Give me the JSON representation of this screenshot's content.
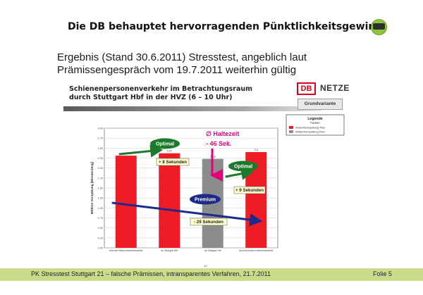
{
  "slide": {
    "title": "Die DB behauptet hervorragenden Pünktlichkeitsgewinn",
    "subtitle_line1": "Ergebnis (Stand 30.6.2011) Stresstest, angeblich laut",
    "subtitle_line2": "Prämissengespräch vom 19.7.2011 weiterhin gültig",
    "footer_text": "PK Stresstest Stuttgart 21 – falsche Prämissen, intransparentes Verfahren, 21.7.2011",
    "footer_page": "Folie 5",
    "footer_color": "#c9dc8c"
  },
  "figure": {
    "heading_line1": "Schienenpersonenverkehr im Betrachtungsraum",
    "heading_line2": "durch Stuttgart Hbf in der HVZ (6 – 10 Uhr)",
    "brand_db": "DB",
    "brand_netze": "NETZE",
    "variant_label": "Grundvariante",
    "page_number": "67"
  },
  "chart_data": {
    "type": "bar",
    "ylabel": "Mittlere Verspätung [Minuten/Zug]",
    "ylim": [
      0,
      3.0
    ],
    "yticks": [
      0,
      0.25,
      0.5,
      0.75,
      1.0,
      1.25,
      1.5,
      1.75,
      2.0,
      2.25,
      2.5,
      2.75,
      3.0
    ],
    "categories": [
      "Ankunft Einbruchsbetriebsstelle",
      "an Stuttgart Hbf",
      "ab Stuttgart Hbf",
      "Ankunft Ausbruchsbetriebsstelle"
    ],
    "series": [
      {
        "name": "Ankunftverspätung Plan",
        "color": "#ee1c25",
        "values": [
          2.31,
          2.37,
          null,
          2.4
        ]
      },
      {
        "name": "Abfahrtverspätung Plan",
        "color": "#8c8c8c",
        "values": [
          null,
          null,
          2.23,
          null
        ]
      }
    ],
    "value_labels": [
      "2,31",
      "2,37",
      "2,23",
      "2,4"
    ],
    "grid": true,
    "legend": {
      "title": "Legende",
      "subtitle": "Farben",
      "placement": "top-right",
      "items": [
        "Ankunftverspätung Plan",
        "Abfahrtverspätung Plan"
      ]
    },
    "annotations": {
      "haltezeit_line1": "∅ Haltezeit",
      "haltezeit_line2": "- 46 Sek.",
      "optimal_1": "Optimal",
      "optimal_2": "Optimal",
      "premium": "Premium",
      "plus_8": "+ 8 Sekunden",
      "plus_9": "+ 9 Sekunden",
      "minus_29": "- 29 Sekunden"
    },
    "colors": {
      "accent_magenta": "#e6007e",
      "optimal_green": "#1c7a2c",
      "premium_blue": "#1c2a8c",
      "label_box": "#ffffcc"
    }
  }
}
